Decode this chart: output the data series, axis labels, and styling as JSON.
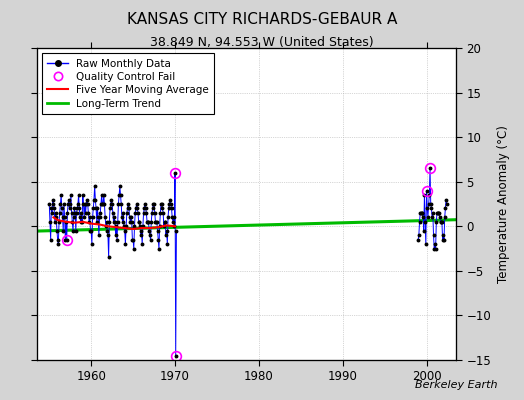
{
  "title": "KANSAS CITY RICHARDS-GEBAUR A",
  "subtitle": "38.849 N, 94.553 W (United States)",
  "ylabel": "Temperature Anomaly (°C)",
  "xlabel_credit": "Berkeley Earth",
  "ylim": [
    -15,
    20
  ],
  "xlim": [
    1953.5,
    2003.5
  ],
  "yticks": [
    -15,
    -10,
    -5,
    0,
    5,
    10,
    15,
    20
  ],
  "xticks": [
    1960,
    1970,
    1980,
    1990,
    2000
  ],
  "background_color": "#d4d4d4",
  "plot_bg_color": "#ffffff",
  "raw_line_color": "#0000ff",
  "raw_dot_color": "#000000",
  "qc_fail_color": "#ff00ff",
  "moving_avg_color": "#ff0000",
  "trend_color": "#00bb00",
  "raw_data_years": [
    1955.0,
    1955.083,
    1955.167,
    1955.25,
    1955.333,
    1955.417,
    1955.5,
    1955.583,
    1955.667,
    1955.75,
    1955.833,
    1955.917,
    1956.0,
    1956.083,
    1956.167,
    1956.25,
    1956.333,
    1956.417,
    1956.5,
    1956.583,
    1956.667,
    1956.75,
    1956.833,
    1956.917,
    1957.0,
    1957.083,
    1957.167,
    1957.25,
    1957.333,
    1957.417,
    1957.5,
    1957.583,
    1957.667,
    1957.75,
    1957.833,
    1957.917,
    1958.0,
    1958.083,
    1958.167,
    1958.25,
    1958.333,
    1958.417,
    1958.5,
    1958.583,
    1958.667,
    1958.75,
    1958.833,
    1958.917,
    1959.0,
    1959.083,
    1959.167,
    1959.25,
    1959.333,
    1959.417,
    1959.5,
    1959.583,
    1959.667,
    1959.75,
    1959.833,
    1959.917,
    1960.0,
    1960.083,
    1960.167,
    1960.25,
    1960.333,
    1960.417,
    1960.5,
    1960.583,
    1960.667,
    1960.75,
    1960.833,
    1960.917,
    1961.0,
    1961.083,
    1961.167,
    1961.25,
    1961.333,
    1961.417,
    1961.5,
    1961.583,
    1961.667,
    1961.75,
    1961.833,
    1961.917,
    1962.0,
    1962.083,
    1962.167,
    1962.25,
    1962.333,
    1962.417,
    1962.5,
    1962.583,
    1962.667,
    1962.75,
    1962.833,
    1962.917,
    1963.0,
    1963.083,
    1963.167,
    1963.25,
    1963.333,
    1963.417,
    1963.5,
    1963.583,
    1963.667,
    1963.75,
    1963.833,
    1963.917,
    1964.0,
    1964.083,
    1964.167,
    1964.25,
    1964.333,
    1964.417,
    1964.5,
    1964.583,
    1964.667,
    1964.75,
    1964.833,
    1964.917,
    1965.0,
    1965.083,
    1965.167,
    1965.25,
    1965.333,
    1965.417,
    1965.5,
    1965.583,
    1965.667,
    1965.75,
    1965.833,
    1965.917,
    1966.0,
    1966.083,
    1966.167,
    1966.25,
    1966.333,
    1966.417,
    1966.5,
    1966.583,
    1966.667,
    1966.75,
    1966.833,
    1966.917,
    1967.0,
    1967.083,
    1967.167,
    1967.25,
    1967.333,
    1967.417,
    1967.5,
    1967.583,
    1967.667,
    1967.75,
    1967.833,
    1967.917,
    1968.0,
    1968.083,
    1968.167,
    1968.25,
    1968.333,
    1968.417,
    1968.5,
    1968.583,
    1968.667,
    1968.75,
    1968.833,
    1968.917,
    1969.0,
    1969.083,
    1969.167,
    1969.25,
    1969.333,
    1969.417,
    1969.5,
    1969.583,
    1969.667,
    1969.75,
    1969.833,
    1969.917,
    1970.0,
    1970.083,
    1970.167,
    1999.0,
    1999.083,
    1999.167,
    1999.25,
    1999.333,
    1999.417,
    1999.5,
    1999.583,
    1999.667,
    1999.75,
    1999.833,
    1999.917,
    2000.0,
    2000.083,
    2000.167,
    2000.25,
    2000.333,
    2000.417,
    2000.5,
    2000.583,
    2000.667,
    2000.75,
    2000.833,
    2000.917,
    2001.0,
    2001.083,
    2001.167,
    2001.25,
    2001.333,
    2001.417,
    2001.5,
    2001.583,
    2001.667,
    2001.75,
    2001.833,
    2001.917,
    2002.0,
    2002.083,
    2002.167,
    2002.25,
    2002.333,
    2002.417
  ],
  "raw_data_values": [
    2.5,
    0.5,
    -1.5,
    2.0,
    1.5,
    3.0,
    2.5,
    2.0,
    0.5,
    1.5,
    1.0,
    -0.5,
    -1.5,
    -2.0,
    0.5,
    1.5,
    2.5,
    3.5,
    2.0,
    1.0,
    -0.5,
    2.5,
    1.0,
    -1.5,
    0.5,
    -1.5,
    1.5,
    2.5,
    3.0,
    2.0,
    2.5,
    3.5,
    1.5,
    0.5,
    -0.5,
    1.0,
    2.0,
    1.5,
    -0.5,
    1.5,
    2.0,
    2.5,
    3.5,
    2.0,
    1.0,
    0.5,
    1.5,
    0.5,
    3.5,
    2.5,
    1.0,
    2.5,
    1.5,
    2.5,
    3.0,
    2.5,
    1.5,
    0.5,
    1.0,
    -0.5,
    -0.5,
    -2.0,
    1.0,
    2.0,
    3.0,
    4.5,
    3.0,
    2.0,
    0.5,
    2.0,
    1.0,
    -1.0,
    1.0,
    1.5,
    2.5,
    3.5,
    2.5,
    2.5,
    3.5,
    2.5,
    1.0,
    0.0,
    0.5,
    -0.5,
    -1.0,
    -3.5,
    0.5,
    2.0,
    2.5,
    3.0,
    2.5,
    1.5,
    0.5,
    1.0,
    0.5,
    -1.0,
    0.0,
    -1.5,
    0.5,
    2.5,
    3.5,
    4.5,
    3.5,
    2.5,
    1.0,
    0.5,
    1.5,
    0.0,
    -0.5,
    -2.0,
    0.0,
    1.5,
    2.0,
    2.5,
    2.0,
    1.0,
    0.5,
    1.0,
    0.5,
    -1.5,
    -1.5,
    -2.5,
    0.0,
    1.5,
    2.0,
    2.5,
    2.0,
    1.5,
    0.5,
    0.5,
    0.0,
    -1.0,
    -0.5,
    -2.0,
    0.0,
    1.5,
    2.0,
    2.5,
    2.0,
    1.5,
    0.5,
    0.5,
    0.5,
    -0.5,
    -1.0,
    -1.5,
    0.5,
    1.5,
    2.0,
    2.5,
    2.5,
    1.5,
    0.5,
    0.5,
    0.5,
    -0.5,
    -1.5,
    -2.5,
    0.0,
    1.5,
    2.5,
    2.5,
    2.0,
    1.5,
    0.0,
    0.5,
    0.5,
    -1.0,
    -0.5,
    -2.0,
    1.0,
    2.0,
    2.5,
    3.0,
    2.5,
    2.0,
    1.0,
    0.5,
    1.0,
    0.0,
    6.0,
    -14.5,
    -0.5,
    -1.5,
    -1.0,
    0.5,
    1.5,
    1.5,
    1.5,
    1.5,
    1.0,
    -0.5,
    3.5,
    0.5,
    -2.0,
    4.0,
    2.0,
    1.0,
    2.5,
    3.5,
    6.5,
    2.5,
    2.0,
    1.0,
    1.5,
    -1.0,
    -2.5,
    -2.0,
    -2.5,
    0.5,
    1.5,
    1.5,
    1.5,
    1.5,
    1.0,
    0.5,
    0.5,
    0.5,
    -1.5,
    -1.0,
    -1.5,
    1.0,
    2.0,
    3.0,
    2.5
  ],
  "qc_fail_years": [
    1957.083,
    1970.0,
    1970.083,
    2000.0,
    2000.417
  ],
  "qc_fail_values": [
    -1.5,
    6.0,
    -14.5,
    4.0,
    6.5
  ],
  "moving_avg_years": [
    1955.5,
    1956.0,
    1957.0,
    1958.0,
    1959.0,
    1960.0,
    1961.0,
    1962.0,
    1963.0,
    1964.0,
    1965.0,
    1966.0,
    1967.0,
    1968.0,
    1969.0,
    1970.0
  ],
  "moving_avg_values": [
    1.0,
    0.7,
    0.5,
    0.4,
    0.5,
    0.3,
    0.2,
    0.0,
    -0.1,
    -0.2,
    -0.3,
    -0.2,
    -0.2,
    -0.1,
    0.1,
    0.0
  ],
  "trend_years": [
    1953,
    2004
  ],
  "trend_values": [
    -0.55,
    0.75
  ],
  "legend_raw_label": "Raw Monthly Data",
  "legend_qc_label": "Quality Control Fail",
  "legend_ma_label": "Five Year Moving Average",
  "legend_trend_label": "Long-Term Trend",
  "title_fontsize": 11,
  "subtitle_fontsize": 9,
  "tick_fontsize": 8.5,
  "ylabel_fontsize": 8.5
}
